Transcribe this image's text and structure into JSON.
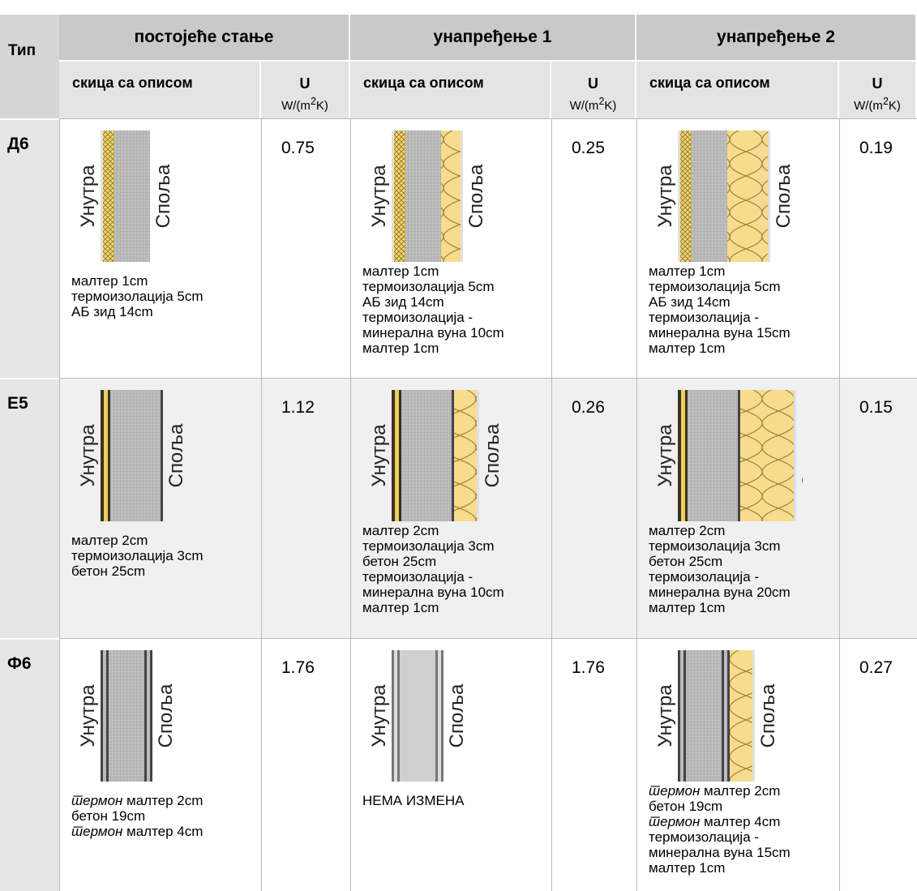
{
  "header": {
    "type_label": "Тип",
    "groups": [
      "постојеће стање",
      "унапређење 1",
      "унапређење 2"
    ],
    "sketch_label": "скица са описом",
    "u_label": "U",
    "u_unit": {
      "before": "W/(m",
      "sup": "2",
      "after": "K)"
    }
  },
  "sketch_labels": {
    "inside": "Унутра",
    "outside": "Споља"
  },
  "rows": [
    {
      "type": "Д6",
      "cells": [
        {
          "u": 0.75,
          "lines": [
            {
              "text": "малтер 1cm"
            },
            {
              "text": "термоизолација 5cm"
            },
            {
              "text": "АБ зид 14cm"
            }
          ]
        },
        {
          "u": 0.25,
          "lines": [
            {
              "text": "малтер 1cm"
            },
            {
              "text": "термоизолација 5cm"
            },
            {
              "text": "АБ зид 14cm"
            },
            {
              "text": "термоизолација -"
            },
            {
              "text": "минерална вуна 10cm"
            },
            {
              "text": "малтер 1cm"
            }
          ]
        },
        {
          "u": 0.19,
          "lines": [
            {
              "text": "малтер 1cm"
            },
            {
              "text": "термоизолација 5cm"
            },
            {
              "text": "АБ зид 14cm"
            },
            {
              "text": "термоизолација -"
            },
            {
              "text": "минерална вуна 15cm"
            },
            {
              "text": "малтер 1cm"
            }
          ]
        }
      ]
    },
    {
      "type": "Е5",
      "cells": [
        {
          "u": 1.12,
          "lines": [
            {
              "text": "малтер 2cm"
            },
            {
              "text": "термоизолација 3cm"
            },
            {
              "text": "бетон 25cm"
            }
          ]
        },
        {
          "u": 0.26,
          "lines": [
            {
              "text": "малтер 2cm"
            },
            {
              "text": "термоизолација 3cm"
            },
            {
              "text": "бетон 25cm"
            },
            {
              "text": "термоизолација -"
            },
            {
              "text": "минерална вуна 10cm"
            },
            {
              "text": "малтер 1cm"
            }
          ]
        },
        {
          "u": 0.15,
          "lines": [
            {
              "text": "малтер 2cm"
            },
            {
              "text": "термоизолација 3cm"
            },
            {
              "text": "бетон 25cm"
            },
            {
              "text": "термоизолација -"
            },
            {
              "text": "минерална вуна 20cm"
            },
            {
              "text": "малтер 1cm"
            }
          ]
        }
      ]
    },
    {
      "type": "Ф6",
      "cells": [
        {
          "u": 1.76,
          "lines": [
            {
              "em": "термон",
              "text": " малтер 2cm"
            },
            {
              "text": "бетон 19cm"
            },
            {
              "em": "термон",
              "text": " малтер 4cm"
            }
          ]
        },
        {
          "u": 1.76,
          "lines": [
            {
              "text": "НЕМА ИЗМЕНА"
            }
          ]
        },
        {
          "u": 0.27,
          "lines": [
            {
              "em": "термон",
              "text": " малтер 2cm"
            },
            {
              "text": "бетон 19cm"
            },
            {
              "em": "термон",
              "text": " малтер 4cm"
            },
            {
              "text": "термоизолација -"
            },
            {
              "text": "минерална вуна 15cm"
            },
            {
              "text": "малтер 1cm"
            }
          ]
        }
      ]
    }
  ]
}
